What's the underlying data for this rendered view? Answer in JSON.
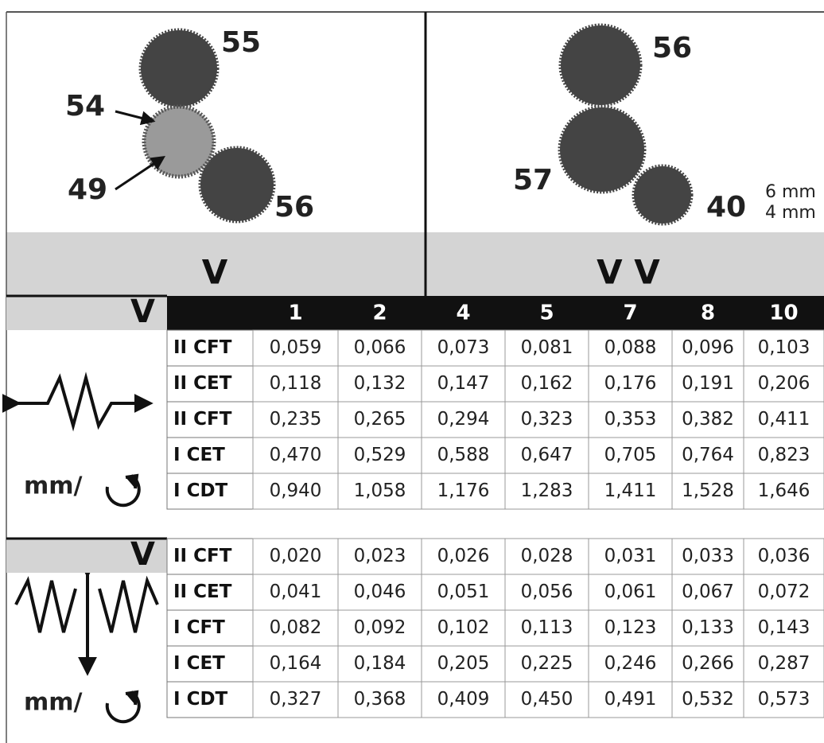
{
  "panels": [
    {
      "labels": [
        "55",
        "54",
        "49",
        "56"
      ],
      "title": "V"
    },
    {
      "labels": [
        "56",
        "57",
        "40"
      ],
      "notes": [
        "6 mm",
        "4 mm"
      ],
      "title": "V V"
    }
  ],
  "tables": [
    {
      "header": "V",
      "columns": [
        "1",
        "2",
        "4",
        "5",
        "7",
        "8",
        "10"
      ],
      "unit": "mm/",
      "rows": [
        {
          "label": "II CFT",
          "values": [
            "0,059",
            "0,066",
            "0,073",
            "0,081",
            "0,088",
            "0,096",
            "0,103"
          ]
        },
        {
          "label": "II CET",
          "values": [
            "0,118",
            "0,132",
            "0,147",
            "0,162",
            "0,176",
            "0,191",
            "0,206"
          ]
        },
        {
          "label": "II CFT",
          "values": [
            "0,235",
            "0,265",
            "0,294",
            "0,323",
            "0,353",
            "0,382",
            "0,411"
          ]
        },
        {
          "label": "I CET",
          "values": [
            "0,470",
            "0,529",
            "0,588",
            "0,647",
            "0,705",
            "0,764",
            "0,823"
          ]
        },
        {
          "label": "I CDT",
          "values": [
            "0,940",
            "1,058",
            "1,176",
            "1,283",
            "1,411",
            "1,528",
            "1,646"
          ]
        }
      ]
    },
    {
      "header": "V",
      "unit": "mm/",
      "rows": [
        {
          "label": "II CFT",
          "values": [
            "0,020",
            "0,023",
            "0,026",
            "0,028",
            "0,031",
            "0,033",
            "0,036"
          ]
        },
        {
          "label": "II CET",
          "values": [
            "0,041",
            "0,046",
            "0,051",
            "0,056",
            "0,061",
            "0,067",
            "0,072"
          ]
        },
        {
          "label": "I  CFT",
          "values": [
            "0,082",
            "0,092",
            "0,102",
            "0,113",
            "0,123",
            "0,133",
            "0,143"
          ]
        },
        {
          "label": "I CET",
          "values": [
            "0,164",
            "0,184",
            "0,205",
            "0,225",
            "0,246",
            "0,266",
            "0,287"
          ]
        },
        {
          "label": "I CDT",
          "values": [
            "0,327",
            "0,368",
            "0,409",
            "0,450",
            "0,491",
            "0,532",
            "0,573"
          ]
        }
      ]
    }
  ]
}
